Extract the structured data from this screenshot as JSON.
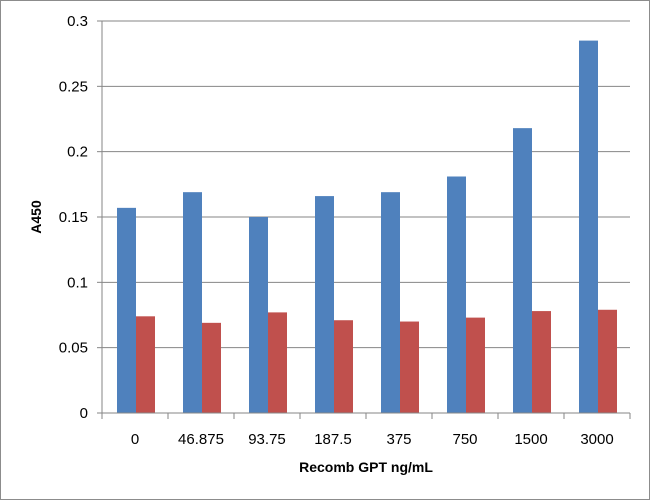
{
  "chart_data": {
    "type": "bar",
    "title": "",
    "xlabel": "Recomb GPT ng/mL",
    "ylabel": "A450",
    "categories": [
      "0",
      "46.875",
      "93.75",
      "187.5",
      "375",
      "750",
      "1500",
      "3000"
    ],
    "series": [
      {
        "values": [
          0.157,
          0.169,
          0.15,
          0.166,
          0.169,
          0.181,
          0.218,
          0.285
        ],
        "color": "#4f81bd"
      },
      {
        "values": [
          0.074,
          0.069,
          0.077,
          0.071,
          0.07,
          0.073,
          0.078,
          0.079
        ],
        "color": "#c0504d"
      }
    ],
    "ylim": [
      0,
      0.3
    ],
    "yticks": [
      "0",
      "0.05",
      "0.1",
      "0.15",
      "0.2",
      "0.25",
      "0.3"
    ],
    "grid": true,
    "legend": "none"
  }
}
